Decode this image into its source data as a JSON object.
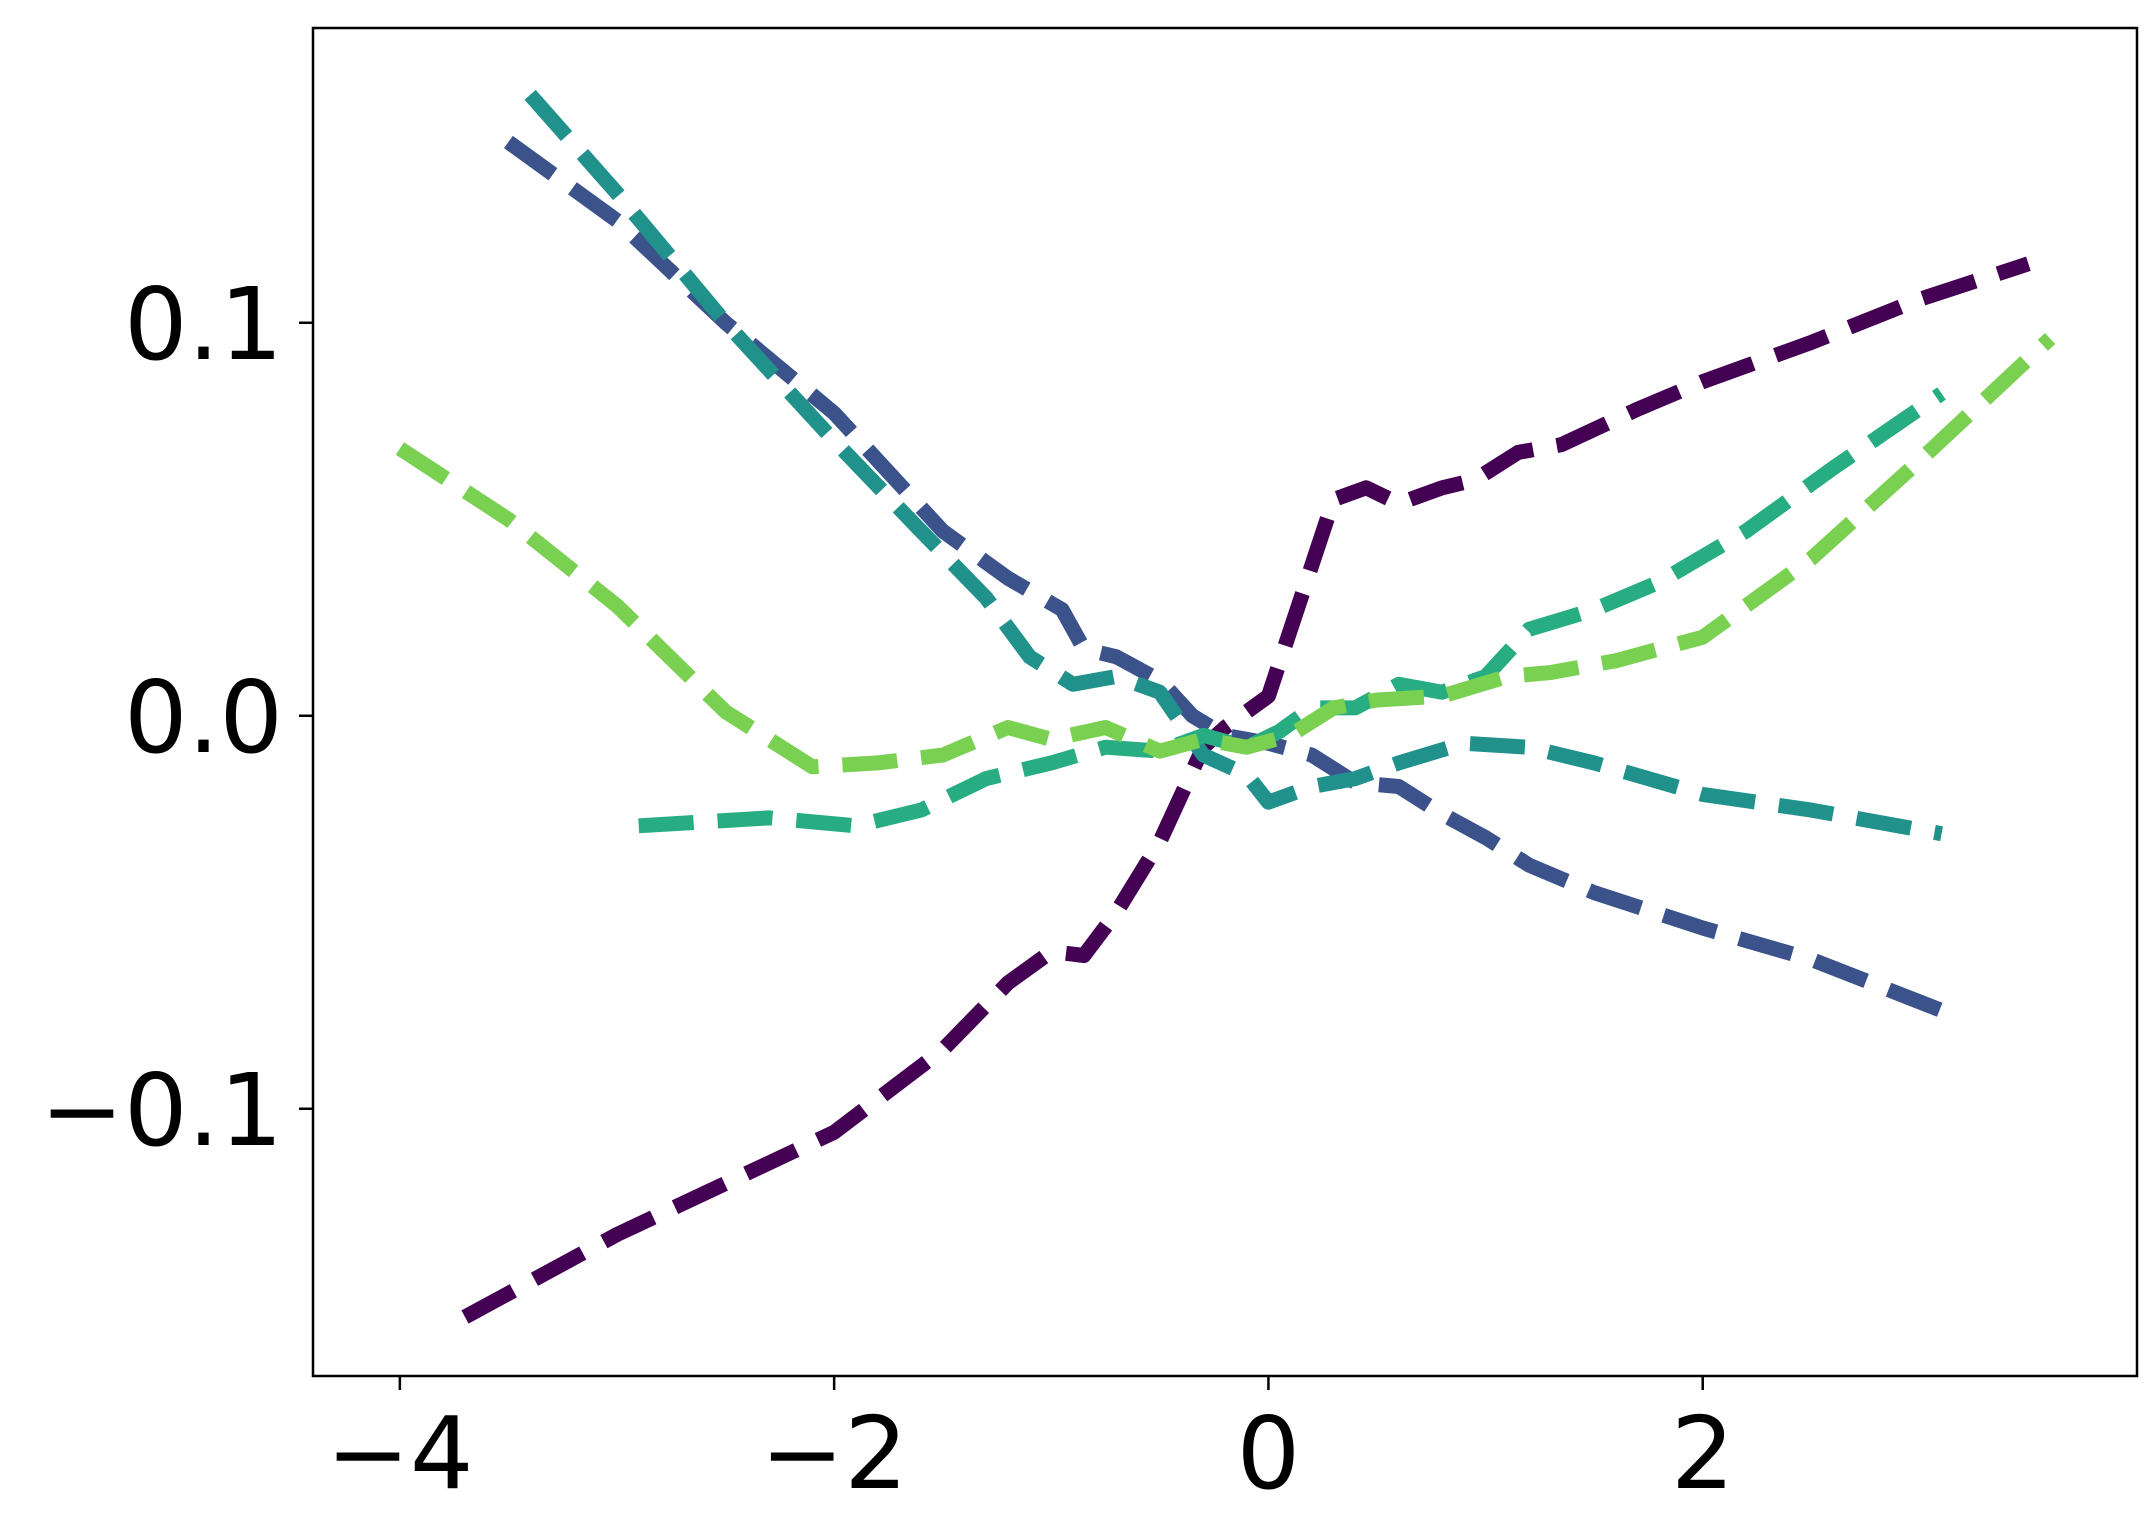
{
  "chart_data": {
    "type": "line",
    "title": "",
    "xlabel": "",
    "ylabel": "",
    "xlim": [
      -4.4,
      4.0
    ],
    "ylim": [
      -0.168,
      0.175
    ],
    "grid": false,
    "legend": "none",
    "line_style": "dashed",
    "xticks": [
      -4,
      -2,
      0,
      2
    ],
    "xtick_labels": [
      "−4",
      "−2",
      "0",
      "2"
    ],
    "yticks": [
      -0.1,
      0.0,
      0.1
    ],
    "ytick_labels": [
      "−0.1",
      "0.0",
      "0.1"
    ],
    "series": [
      {
        "color": "#440154",
        "x": [
          -3.7,
          -3.0,
          -2.0,
          -1.5,
          -1.2,
          -1.0,
          -0.85,
          -0.7,
          -0.5,
          -0.3,
          -0.2,
          0.0,
          0.15,
          0.3,
          0.45,
          0.6,
          0.8,
          0.95,
          1.15,
          1.35,
          1.7,
          2.0,
          2.5,
          3.0,
          3.5
        ],
        "y": [
          -0.153,
          -0.132,
          -0.106,
          -0.085,
          -0.068,
          -0.06,
          -0.061,
          -0.05,
          -0.032,
          -0.008,
          -0.003,
          0.005,
          0.03,
          0.055,
          0.058,
          0.054,
          0.058,
          0.06,
          0.067,
          0.069,
          0.078,
          0.085,
          0.095,
          0.106,
          0.115
        ]
      },
      {
        "color": "#3b528b",
        "x": [
          -3.5,
          -3.0,
          -2.5,
          -2.0,
          -1.5,
          -1.2,
          -0.95,
          -0.85,
          -0.7,
          -0.5,
          -0.35,
          -0.2,
          0.0,
          0.2,
          0.4,
          0.6,
          0.8,
          1.0,
          1.2,
          1.5,
          2.0,
          2.5,
          3.1
        ],
        "y": [
          0.146,
          0.126,
          0.1,
          0.077,
          0.047,
          0.035,
          0.027,
          0.017,
          0.015,
          0.009,
          0.0,
          -0.005,
          -0.007,
          -0.01,
          -0.017,
          -0.018,
          -0.025,
          -0.031,
          -0.038,
          -0.045,
          -0.054,
          -0.062,
          -0.075
        ]
      },
      {
        "color": "#21918c",
        "x": [
          -3.4,
          -3.0,
          -2.5,
          -2.0,
          -1.6,
          -1.3,
          -1.1,
          -0.9,
          -0.7,
          -0.5,
          -0.3,
          -0.1,
          0.0,
          0.2,
          0.4,
          0.6,
          0.9,
          1.2,
          1.5,
          2.0,
          2.5,
          3.1
        ],
        "y": [
          0.158,
          0.133,
          0.1,
          0.07,
          0.047,
          0.03,
          0.015,
          0.008,
          0.01,
          0.006,
          -0.01,
          -0.015,
          -0.022,
          -0.018,
          -0.016,
          -0.012,
          -0.007,
          -0.008,
          -0.012,
          -0.02,
          -0.024,
          -0.03
        ]
      },
      {
        "color": "#27ad81",
        "x": [
          -2.9,
          -2.3,
          -1.9,
          -1.6,
          -1.3,
          -1.0,
          -0.75,
          -0.5,
          -0.3,
          -0.1,
          0.05,
          0.2,
          0.4,
          0.6,
          0.8,
          1.0,
          1.2,
          1.5,
          1.8,
          2.2,
          2.6,
          3.1
        ],
        "y": [
          -0.028,
          -0.026,
          -0.028,
          -0.024,
          -0.016,
          -0.012,
          -0.008,
          -0.009,
          -0.005,
          -0.008,
          -0.004,
          0.002,
          0.002,
          0.008,
          0.006,
          0.01,
          0.022,
          0.027,
          0.034,
          0.047,
          0.063,
          0.082
        ]
      },
      {
        "color": "#7ad151",
        "x": [
          -4.0,
          -3.5,
          -3.0,
          -2.5,
          -2.1,
          -1.8,
          -1.5,
          -1.2,
          -1.0,
          -0.75,
          -0.5,
          -0.3,
          -0.1,
          0.1,
          0.3,
          0.5,
          0.8,
          1.1,
          1.3,
          1.6,
          2.0,
          2.5,
          3.0,
          3.6
        ],
        "y": [
          0.068,
          0.05,
          0.028,
          0.001,
          -0.013,
          -0.012,
          -0.01,
          -0.003,
          -0.006,
          -0.003,
          -0.009,
          -0.006,
          -0.008,
          -0.005,
          0.002,
          0.004,
          0.005,
          0.01,
          0.011,
          0.014,
          0.02,
          0.04,
          0.065,
          0.096
        ]
      }
    ]
  }
}
